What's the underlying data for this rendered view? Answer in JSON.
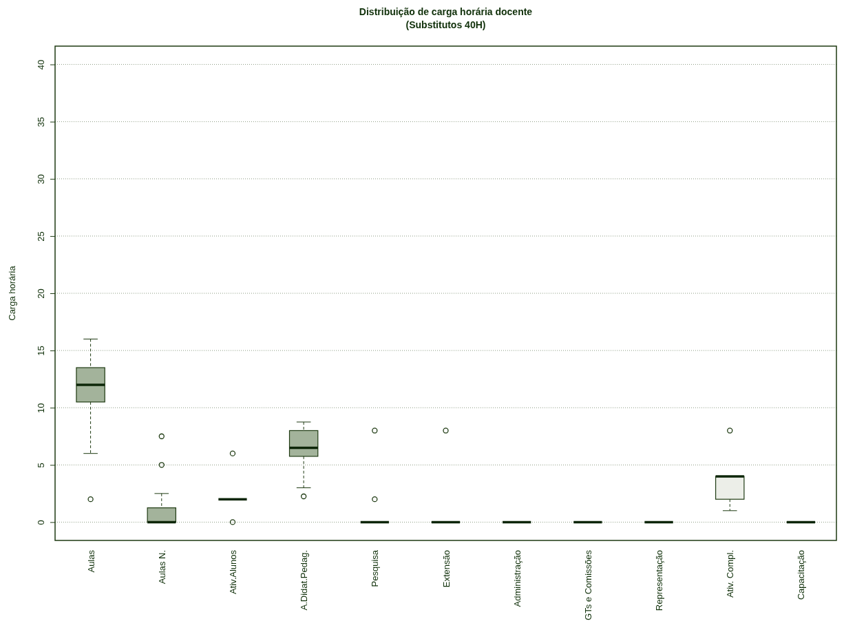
{
  "chart_data": {
    "type": "box",
    "title": "Distribuição de carga horária docente",
    "subtitle": "(Substitutos 40H)",
    "ylabel": "Carga horária",
    "categories": [
      "Aulas",
      "Aulas N.",
      "Ativ.Alunos",
      "A.Didat.Pedag.",
      "Pesquisa",
      "Extensão",
      "Administração",
      "GTs e Comissões",
      "Representação",
      "Ativ. Compl.",
      "Capacitação"
    ],
    "boxes": [
      {
        "low": 6,
        "q1": 10.5,
        "median": 12,
        "q3": 13.5,
        "high": 16,
        "outliers": [
          2
        ]
      },
      {
        "low": 0,
        "q1": 0,
        "median": 0,
        "q3": 1.25,
        "high": 2.5,
        "outliers": [
          5,
          7.5
        ]
      },
      {
        "low": 2,
        "q1": 2,
        "median": 2,
        "q3": 2,
        "high": 2,
        "outliers": [
          6,
          0
        ]
      },
      {
        "low": 3,
        "q1": 5.75,
        "median": 6.5,
        "q3": 8,
        "high": 8.75,
        "outliers": [
          2.25
        ]
      },
      {
        "low": 0,
        "q1": 0,
        "median": 0,
        "q3": 0,
        "high": 0,
        "outliers": [
          8,
          2
        ]
      },
      {
        "low": 0,
        "q1": 0,
        "median": 0,
        "q3": 0,
        "high": 0,
        "outliers": [
          8
        ]
      },
      {
        "low": 0,
        "q1": 0,
        "median": 0,
        "q3": 0,
        "high": 0
      },
      {
        "low": 0,
        "q1": 0,
        "median": 0,
        "q3": 0,
        "high": 0
      },
      {
        "low": 0,
        "q1": 0,
        "median": 0,
        "q3": 0,
        "high": 0
      },
      {
        "low": 1,
        "q1": 2,
        "median": 4,
        "q3": 4,
        "high": 4,
        "outliers": [
          8
        ]
      },
      {
        "low": 0,
        "q1": 0,
        "median": 0,
        "q3": 0,
        "high": 0
      }
    ],
    "colors": [
      "#a3b39b",
      "#a3b39b",
      "#0d2608",
      "#a3b39b",
      "#0d2608",
      "#0d2608",
      "#0d2608",
      "#0d2608",
      "#0d2608",
      "#eceee8",
      "#0d2608"
    ],
    "ylim": [
      -1.6,
      41.6
    ],
    "yticks": [
      0,
      5,
      10,
      15,
      20,
      25,
      30,
      35,
      40
    ],
    "grid": "y"
  }
}
